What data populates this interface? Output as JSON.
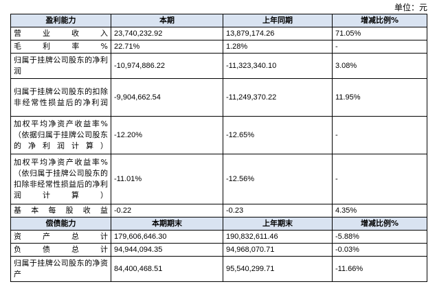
{
  "unit_label": "单位：元",
  "profit_header": [
    "盈利能力",
    "本期",
    "上年同期",
    "增减比例%"
  ],
  "profit_rows": [
    {
      "label": "营业收入",
      "cur": "23,740,232.92",
      "prev": "13,879,174.26",
      "chg": "71.05%"
    },
    {
      "label": "毛利率%",
      "cur": "22.71%",
      "prev": "1.28%",
      "chg": "-"
    },
    {
      "label": "归属于挂牌公司股东的净利润",
      "cur": "-10,974,886.22",
      "prev": "-11,323,340.10",
      "chg": "3.08%"
    },
    {
      "label": "归属于挂牌公司股东的扣除非经常性损益后的净利润",
      "cur": "-9,904,662.54",
      "prev": "-11,249,370.22",
      "chg": "11.95%"
    },
    {
      "label": "加权平均净资产收益率%（依据归属于挂牌公司股东的净利润计算）",
      "cur": "-12.20%",
      "prev": "-12.65%",
      "chg": "-"
    },
    {
      "label": "加权平均净资产收益率%（依归属于挂牌公司股东的扣除非经常性损益后的净利润计算）",
      "cur": "-11.01%",
      "prev": "-12.56%",
      "chg": "-"
    },
    {
      "label": "基本每股收益",
      "cur": "-0.22",
      "prev": "-0.23",
      "chg": "4.35%"
    }
  ],
  "debt_header": [
    "偿债能力",
    "本期期末",
    "上年期末",
    "增减比例%"
  ],
  "debt_rows": [
    {
      "label": "资产总计",
      "cur": "179,606,646.30",
      "prev": "190,832,611.46",
      "chg": "-5.88%"
    },
    {
      "label": "负债总计",
      "cur": "94,944,094.35",
      "prev": "94,968,070.71",
      "chg": "-0.03%"
    },
    {
      "label": "归属于挂牌公司股东的净资产",
      "cur": "84,400,468.51",
      "prev": "95,540,299.71",
      "chg": "-11.66%"
    }
  ]
}
